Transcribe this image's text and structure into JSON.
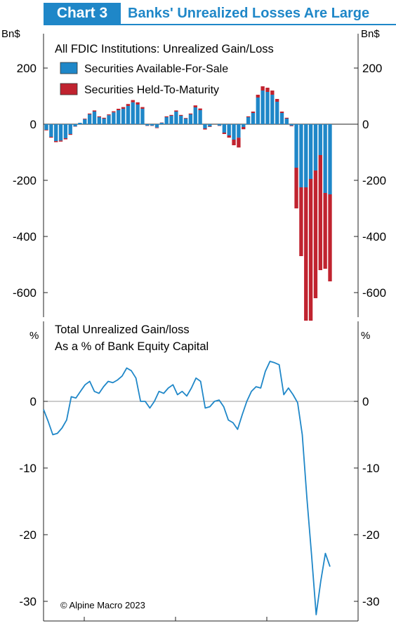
{
  "header": {
    "chart_label": "Chart 3",
    "chart_title": "Banks' Unrealized Losses Are Large"
  },
  "colors": {
    "afs": "#1f87c8",
    "htm": "#c0232f",
    "line": "#1f87c8",
    "axis": "#222222"
  },
  "source": "© Alpine Macro 2023",
  "chart_data": [
    {
      "type": "bar",
      "stacked": true,
      "title": "All FDIC Institutions: Unrealized Gain/Loss",
      "unit_left": "Bn$",
      "unit_right": "Bn$",
      "ylim": [
        -700,
        250
      ],
      "yticks": [
        200,
        0,
        -200,
        -400,
        -600
      ],
      "legend_position": "top-left",
      "grid": false,
      "series": [
        {
          "name": "Securities Available-For-Sale",
          "values": [
            -20,
            -45,
            -60,
            -58,
            -50,
            -35,
            -8,
            5,
            18,
            35,
            45,
            25,
            20,
            32,
            42,
            50,
            55,
            65,
            78,
            70,
            55,
            -5,
            -5,
            -12,
            5,
            25,
            30,
            45,
            30,
            20,
            35,
            60,
            50,
            -15,
            -8,
            0,
            -5,
            -30,
            -40,
            -55,
            -48,
            -10,
            25,
            40,
            95,
            120,
            115,
            105,
            80,
            40,
            20,
            -5,
            -155,
            -225,
            -225,
            -195,
            -165,
            -110,
            -245,
            -250
          ],
          "positive_values": [
            0,
            0,
            0,
            0,
            0,
            0,
            0,
            5,
            18,
            35,
            45,
            25,
            20,
            32,
            42,
            50,
            55,
            65,
            78,
            70,
            55,
            0,
            0,
            0,
            5,
            25,
            30,
            45,
            30,
            20,
            35,
            60,
            50,
            0,
            0,
            0,
            0,
            0,
            0,
            0,
            0,
            0,
            25,
            40,
            95,
            120,
            115,
            105,
            80,
            40,
            20,
            0,
            0,
            0,
            0,
            0,
            0,
            0,
            0,
            0
          ]
        },
        {
          "name": "Securities Held-To-Maturity",
          "values": [
            -2,
            -3,
            -4,
            -4,
            -4,
            -3,
            -1,
            0,
            2,
            3,
            4,
            3,
            3,
            3,
            4,
            5,
            6,
            7,
            8,
            8,
            6,
            -1,
            -1,
            -2,
            1,
            3,
            3,
            4,
            3,
            2,
            3,
            7,
            6,
            -4,
            -2,
            0,
            -1,
            -5,
            -8,
            -20,
            -35,
            -8,
            3,
            5,
            10,
            15,
            15,
            15,
            10,
            5,
            3,
            -2,
            -145,
            -245,
            -475,
            -505,
            -455,
            -410,
            -270,
            -310
          ]
        }
      ]
    },
    {
      "type": "line",
      "title": "Total Unrealized Gain/loss",
      "subtitle": "As a % of Bank Equity Capital",
      "unit_left": "%",
      "unit_right": "%",
      "ylim": [
        -33,
        6
      ],
      "yticks": [
        0,
        -10,
        -20,
        -30
      ],
      "grid": false,
      "series": [
        {
          "name": "",
          "values": [
            -1.2,
            -3.0,
            -5.0,
            -4.8,
            -4.0,
            -2.8,
            0.7,
            0.5,
            1.5,
            2.5,
            3.0,
            1.5,
            1.2,
            2.2,
            3.0,
            2.8,
            3.2,
            3.8,
            5.0,
            4.6,
            3.5,
            0.0,
            0.0,
            -1.0,
            0.0,
            1.5,
            1.2,
            2.0,
            2.5,
            1.0,
            1.5,
            0.8,
            2.0,
            3.5,
            3.0,
            -1.0,
            -0.8,
            0.0,
            0.2,
            -0.8,
            -2.8,
            -3.2,
            -4.2,
            -2.0,
            0.0,
            1.5,
            2.2,
            2.0,
            4.5,
            6.0,
            5.8,
            5.5,
            1.0,
            2.0,
            1.0,
            -0.2,
            -5.0,
            -14.5,
            -23.0,
            -32.0,
            -27.0,
            -22.8,
            -24.8
          ]
        }
      ],
      "x_end_extra_ticks": 2
    }
  ],
  "legend": [
    {
      "label": "Securities Available-For-Sale"
    },
    {
      "label": "Securities Held-To-Maturity"
    }
  ]
}
